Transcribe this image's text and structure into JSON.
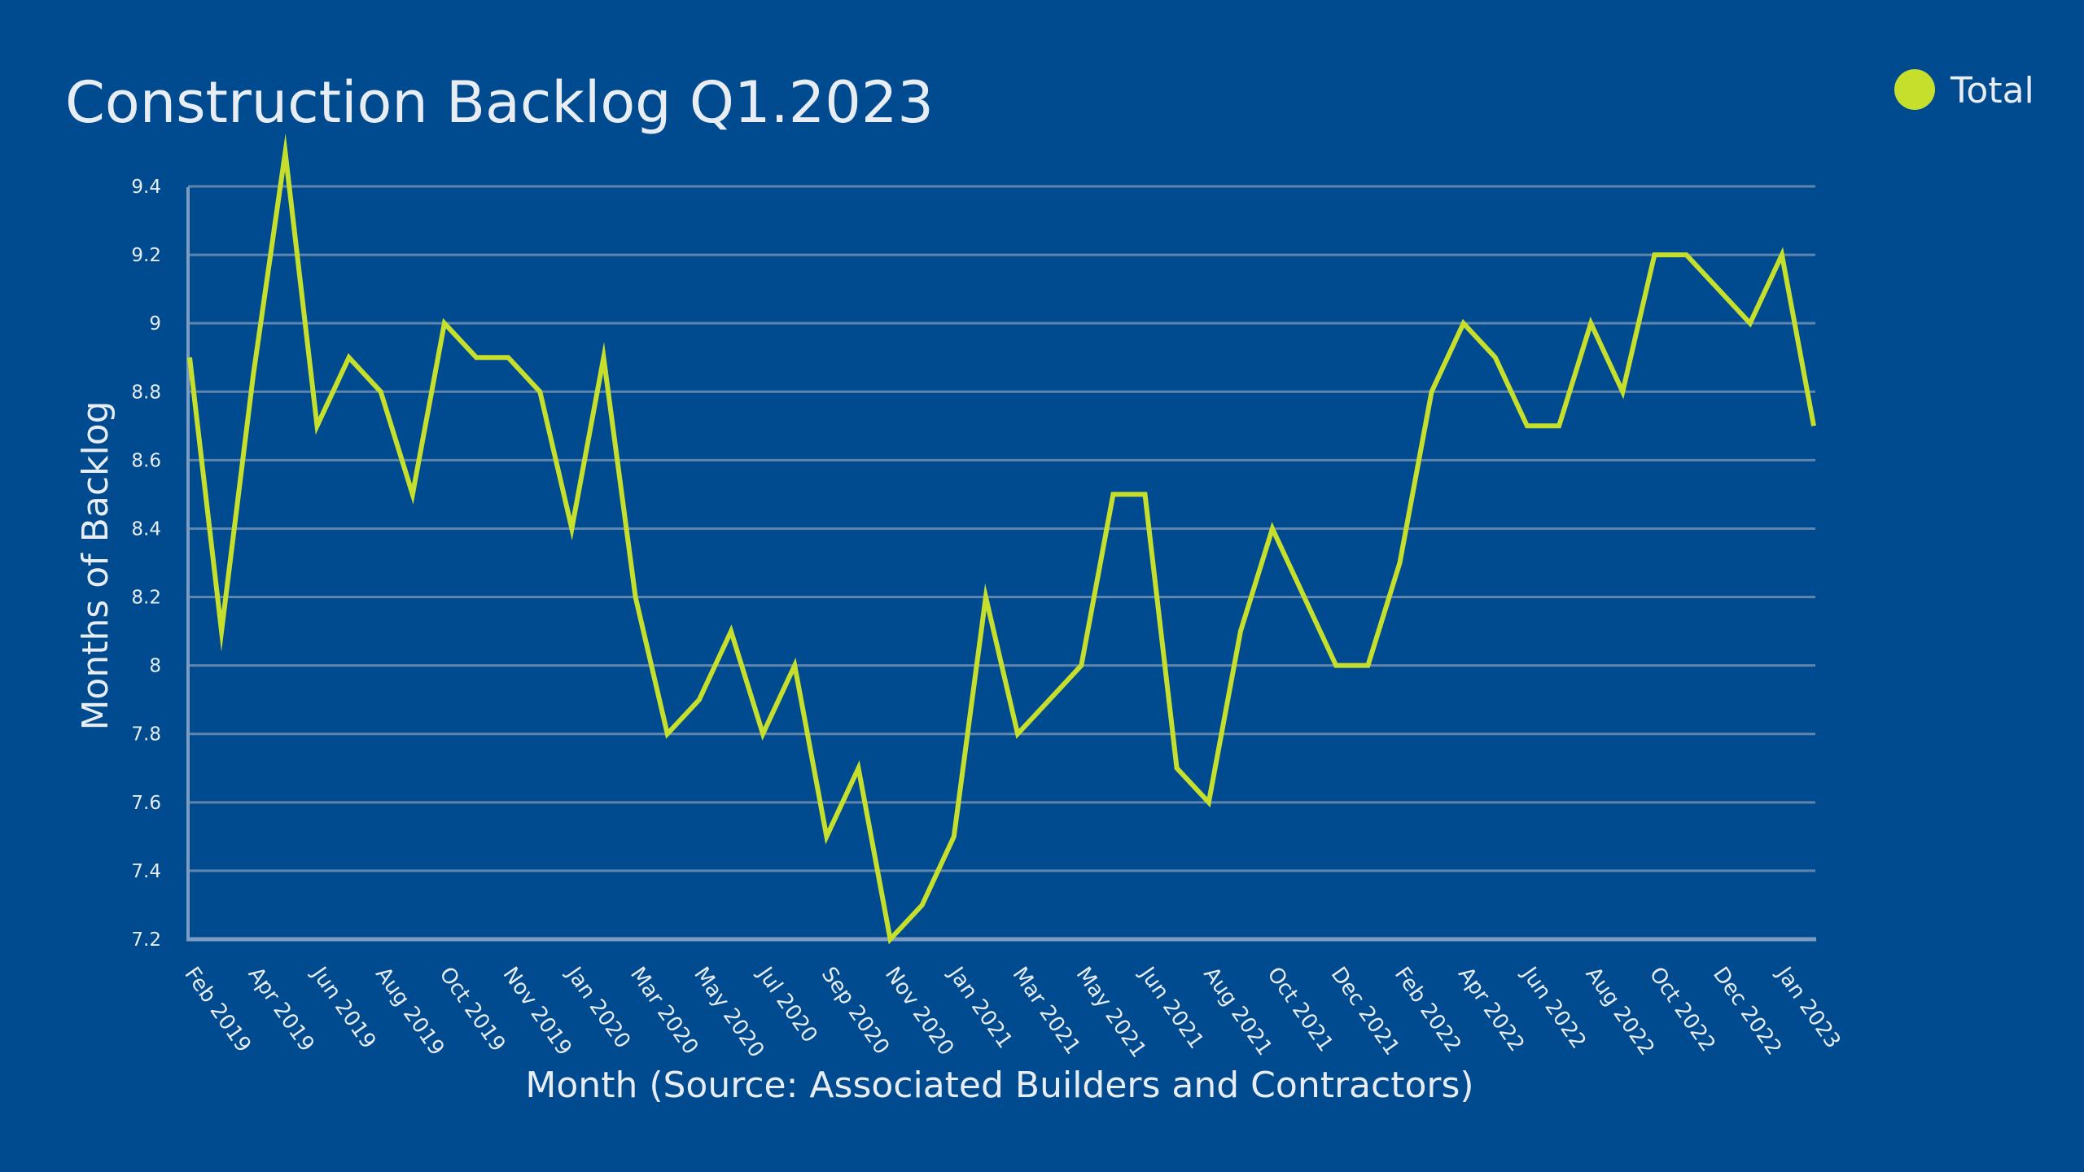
{
  "colors": {
    "background": "#004b8f",
    "grid": "#5f85ad",
    "axis": "#7d9cc0",
    "series": "#c5df2c",
    "text": "#e8edf3"
  },
  "chart_data": {
    "type": "line",
    "title": "Construction Backlog Q1.2023",
    "xlabel": "Month (Source: Associated Builders and Contractors)",
    "ylabel": "Months of Backlog",
    "ylim": [
      7.2,
      9.5
    ],
    "yticks": [
      "7.2",
      "7.4",
      "7.6",
      "7.8",
      "8",
      "8.2",
      "8.4",
      "8.6",
      "8.8",
      "9",
      "9.2",
      "9.4"
    ],
    "xticks": [
      {
        "index": 1,
        "label": "Feb 2019"
      },
      {
        "index": 3,
        "label": "Apr 2019"
      },
      {
        "index": 5,
        "label": "Jun 2019"
      },
      {
        "index": 7,
        "label": "Aug 2019"
      },
      {
        "index": 9,
        "label": "Oct 2019"
      },
      {
        "index": 11,
        "label": "Nov 2019"
      },
      {
        "index": 13,
        "label": "Jan 2020"
      },
      {
        "index": 15,
        "label": "Mar 2020"
      },
      {
        "index": 17,
        "label": "May 2020"
      },
      {
        "index": 19,
        "label": "Jul 2020"
      },
      {
        "index": 21,
        "label": "Sep 2020"
      },
      {
        "index": 23,
        "label": "Nov 2020"
      },
      {
        "index": 25,
        "label": "Jan 2021"
      },
      {
        "index": 27,
        "label": "Mar 2021"
      },
      {
        "index": 29,
        "label": "May 2021"
      },
      {
        "index": 31,
        "label": "Jun 2021"
      },
      {
        "index": 33,
        "label": "Aug 2021"
      },
      {
        "index": 35,
        "label": "Oct 2021"
      },
      {
        "index": 37,
        "label": "Dec 2021"
      },
      {
        "index": 39,
        "label": "Feb 2022"
      },
      {
        "index": 41,
        "label": "Apr 2022"
      },
      {
        "index": 43,
        "label": "Jun 2022"
      },
      {
        "index": 45,
        "label": "Aug 2022"
      },
      {
        "index": 47,
        "label": "Oct 2022"
      },
      {
        "index": 49,
        "label": "Dec 2022"
      },
      {
        "index": 51,
        "label": "Jan 2023"
      }
    ],
    "grid": true,
    "legend_position": "top-right",
    "series": [
      {
        "name": "Total",
        "values": [
          8.9,
          8.1,
          8.85,
          9.5,
          8.7,
          8.9,
          8.8,
          8.5,
          9.0,
          8.9,
          8.9,
          8.8,
          8.4,
          8.9,
          8.2,
          7.8,
          7.9,
          8.1,
          7.8,
          8.0,
          7.5,
          7.7,
          7.2,
          7.3,
          7.5,
          8.2,
          7.8,
          7.9,
          8.0,
          8.5,
          8.5,
          7.7,
          7.6,
          8.1,
          8.4,
          8.2,
          8.0,
          8.0,
          8.3,
          8.8,
          9.0,
          8.9,
          8.7,
          8.7,
          9.0,
          8.8,
          9.2,
          9.2,
          9.1,
          9.0,
          9.2,
          8.7
        ]
      }
    ]
  }
}
